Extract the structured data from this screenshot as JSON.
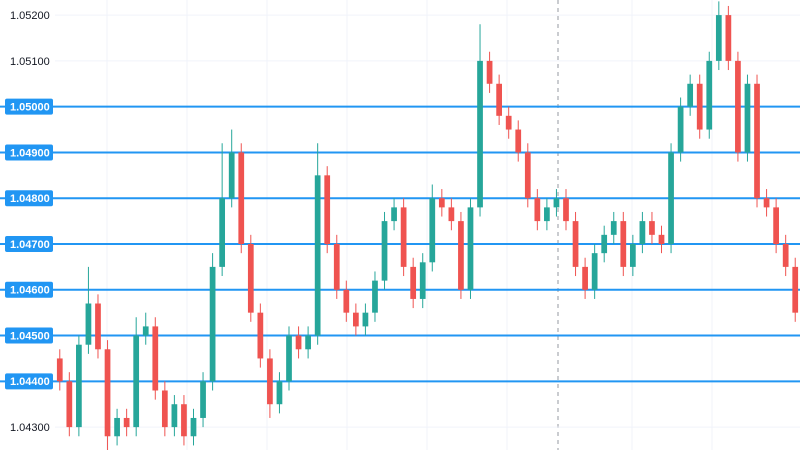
{
  "chart_data": {
    "type": "candlestick",
    "ylim": [
      1.0425,
      1.05233
    ],
    "yticks": [
      {
        "value": 1.043,
        "label": "1.04300"
      },
      {
        "value": 1.044,
        "label": "1.04400"
      },
      {
        "value": 1.045,
        "label": "1.04500"
      },
      {
        "value": 1.046,
        "label": "1.04600"
      },
      {
        "value": 1.047,
        "label": "1.04700"
      },
      {
        "value": 1.048,
        "label": "1.04800"
      },
      {
        "value": 1.049,
        "label": "1.04900"
      },
      {
        "value": 1.05,
        "label": "1.05000"
      },
      {
        "value": 1.051,
        "label": "1.05100"
      },
      {
        "value": 1.052,
        "label": "1.05200"
      }
    ],
    "grid": true,
    "levels": [
      1.044,
      1.045,
      1.046,
      1.047,
      1.048,
      1.049,
      1.05
    ],
    "level_color": "#2196f3",
    "up_color": "#26a69a",
    "down_color": "#ef5350",
    "open": [
      1.0445,
      1.044,
      1.043,
      1.0448,
      1.0457,
      1.0447,
      1.0428,
      1.0432,
      1.043,
      1.045,
      1.0452,
      1.0438,
      1.043,
      1.0435,
      1.0428,
      1.0432,
      1.044,
      1.0465,
      1.048,
      1.049,
      1.047,
      1.0455,
      1.0445,
      1.0435,
      1.044,
      1.045,
      1.0447,
      1.045,
      1.0485,
      1.047,
      1.046,
      1.0455,
      1.0452,
      1.0455,
      1.0462,
      1.0475,
      1.0478,
      1.0465,
      1.0458,
      1.0466,
      1.048,
      1.0478,
      1.0475,
      1.046,
      1.0478,
      1.051,
      1.0505,
      1.0498,
      1.0495,
      1.049,
      1.048,
      1.0475,
      1.0478,
      1.048,
      1.0475,
      1.0465,
      1.046,
      1.0468,
      1.0472,
      1.0475,
      1.0465,
      1.047,
      1.0475,
      1.0472,
      1.047,
      1.049,
      1.05,
      1.0505,
      1.0495,
      1.051,
      1.052,
      1.051,
      1.049,
      1.0505,
      1.048,
      1.0478,
      1.047,
      1.0465
    ],
    "high": [
      1.0447,
      1.0442,
      1.045,
      1.0465,
      1.0459,
      1.0449,
      1.0434,
      1.0434,
      1.0454,
      1.0455,
      1.0454,
      1.044,
      1.0437,
      1.0437,
      1.0434,
      1.0442,
      1.0468,
      1.0492,
      1.0495,
      1.0492,
      1.0472,
      1.0457,
      1.0447,
      1.0442,
      1.0452,
      1.0452,
      1.0452,
      1.0492,
      1.0487,
      1.0472,
      1.0462,
      1.0457,
      1.0457,
      1.0464,
      1.0477,
      1.048,
      1.048,
      1.0467,
      1.0468,
      1.0483,
      1.0482,
      1.048,
      1.0477,
      1.048,
      1.0518,
      1.0512,
      1.0507,
      1.05,
      1.0497,
      1.0492,
      1.0482,
      1.048,
      1.0482,
      1.0482,
      1.0477,
      1.0467,
      1.047,
      1.0474,
      1.0477,
      1.0477,
      1.0472,
      1.0477,
      1.0477,
      1.0474,
      1.0492,
      1.0502,
      1.0507,
      1.0507,
      1.0512,
      1.0523,
      1.0522,
      1.0512,
      1.0507,
      1.0507,
      1.0482,
      1.048,
      1.0472,
      1.0467
    ],
    "low": [
      1.0438,
      1.0428,
      1.0428,
      1.0446,
      1.0445,
      1.0425,
      1.0426,
      1.0428,
      1.0428,
      1.0448,
      1.0436,
      1.0428,
      1.0428,
      1.0426,
      1.0426,
      1.043,
      1.0438,
      1.0463,
      1.0478,
      1.0468,
      1.0453,
      1.0443,
      1.0432,
      1.0433,
      1.0438,
      1.0445,
      1.0445,
      1.0448,
      1.0468,
      1.0458,
      1.0453,
      1.045,
      1.045,
      1.0453,
      1.046,
      1.0473,
      1.0463,
      1.0456,
      1.0456,
      1.0464,
      1.0476,
      1.0473,
      1.0458,
      1.0458,
      1.0476,
      1.0503,
      1.0496,
      1.0493,
      1.0488,
      1.0478,
      1.0473,
      1.0473,
      1.0476,
      1.0473,
      1.0463,
      1.0458,
      1.0458,
      1.0466,
      1.047,
      1.0463,
      1.0463,
      1.0468,
      1.047,
      1.0468,
      1.0468,
      1.0488,
      1.0498,
      1.0493,
      1.0493,
      1.0508,
      1.0508,
      1.0488,
      1.0488,
      1.0478,
      1.0476,
      1.0468,
      1.0463,
      1.0453
    ],
    "close": [
      1.044,
      1.043,
      1.0448,
      1.0457,
      1.0447,
      1.0428,
      1.0432,
      1.043,
      1.045,
      1.0452,
      1.0438,
      1.043,
      1.0435,
      1.0428,
      1.0432,
      1.044,
      1.0465,
      1.048,
      1.049,
      1.047,
      1.0455,
      1.0445,
      1.0435,
      1.044,
      1.045,
      1.0447,
      1.045,
      1.0485,
      1.047,
      1.046,
      1.0455,
      1.0452,
      1.0455,
      1.0462,
      1.0475,
      1.0478,
      1.0465,
      1.0458,
      1.0466,
      1.048,
      1.0478,
      1.0475,
      1.046,
      1.0478,
      1.051,
      1.0505,
      1.0498,
      1.0495,
      1.049,
      1.048,
      1.0475,
      1.0478,
      1.048,
      1.0475,
      1.0465,
      1.046,
      1.0468,
      1.0472,
      1.0475,
      1.0465,
      1.047,
      1.0475,
      1.0472,
      1.047,
      1.049,
      1.05,
      1.0505,
      1.0495,
      1.051,
      1.052,
      1.051,
      1.049,
      1.0505,
      1.048,
      1.0478,
      1.047,
      1.0465,
      1.0455
    ]
  }
}
